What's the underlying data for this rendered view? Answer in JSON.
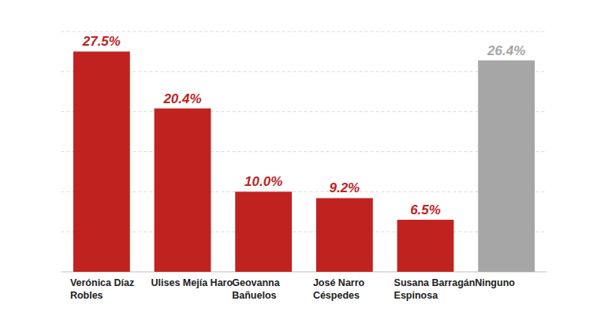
{
  "chart_data": {
    "type": "bar",
    "categories": [
      "Verónica Díaz Robles",
      "Ulises Mejía Haro",
      "Geovanna Bañuelos",
      "José Narro Céspedes",
      "Susana Barragán Espinosa",
      "Ninguno"
    ],
    "values": [
      27.5,
      20.4,
      10.0,
      9.2,
      6.5,
      26.4
    ],
    "value_labels": [
      "27.5%",
      "20.4%",
      "10.0%",
      "9.2%",
      "6.5%",
      "26.4%"
    ],
    "colors": [
      "#c0231f",
      "#c0231f",
      "#c0231f",
      "#c0231f",
      "#c0231f",
      "#a6a6a6"
    ],
    "ylim": [
      0,
      30
    ],
    "yticks": [
      0,
      5,
      10,
      15,
      20,
      25,
      30
    ],
    "grid": true,
    "data_labels": true,
    "tick_labels": false
  }
}
